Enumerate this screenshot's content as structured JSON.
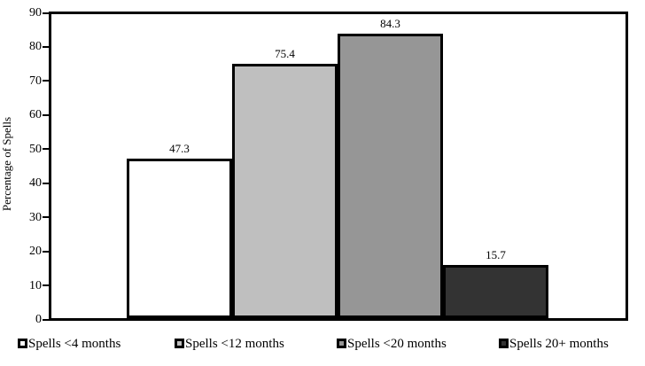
{
  "chart_data": {
    "type": "bar",
    "title": "",
    "xlabel": "",
    "ylabel": "Percentage of Spells",
    "ylim": [
      0,
      90
    ],
    "yticks": [
      0,
      10,
      20,
      30,
      40,
      50,
      60,
      70,
      80,
      90
    ],
    "grid": false,
    "legend_position": "bottom",
    "categories": [
      "Spells <4 months",
      "Spells <12 months",
      "Spells <20 months",
      "Spells 20+ months"
    ],
    "values": [
      47.3,
      75.4,
      84.3,
      15.7
    ],
    "value_labels": [
      "47.3",
      "75.4",
      "84.3",
      "15.7"
    ],
    "bar_colors": [
      "#ffffff",
      "#bfbfbf",
      "#969696",
      "#333333"
    ],
    "bar_border_color": "#000000",
    "axis_color": "#000000",
    "text_color": "#000000"
  }
}
